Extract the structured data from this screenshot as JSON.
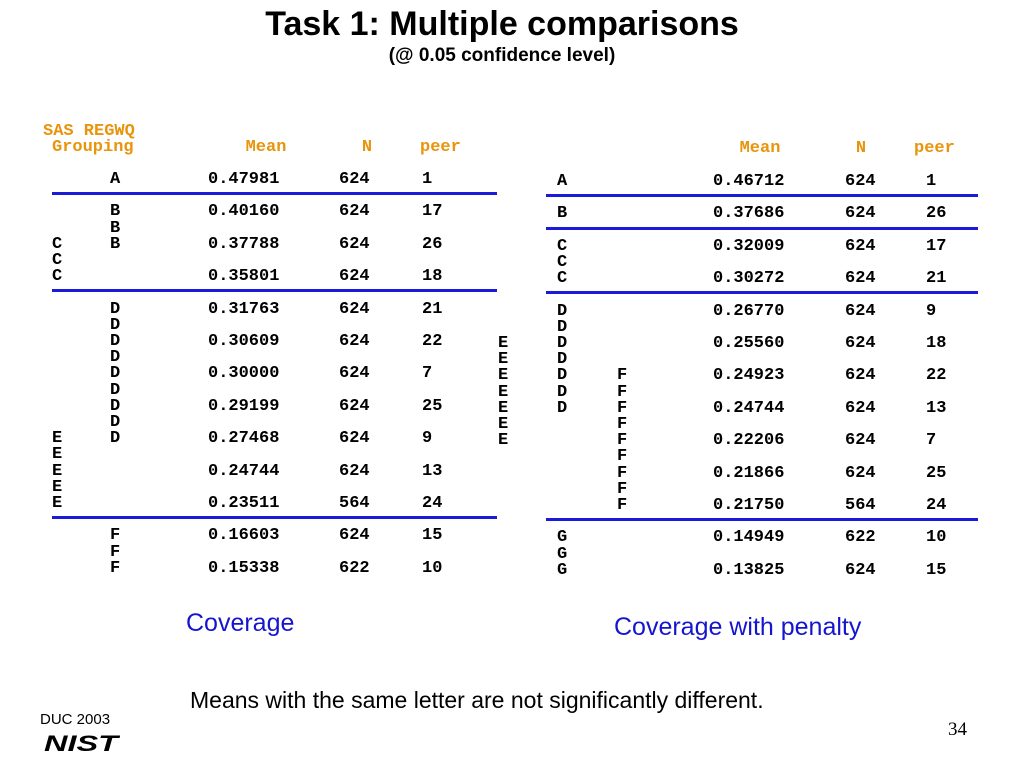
{
  "title": "Task 1: Multiple comparisons",
  "subtitle": "(@ 0.05 confidence level)",
  "left": {
    "group_header_1": "SAS REGWQ",
    "group_header_2": "Grouping",
    "mean_header": "Mean",
    "n_header": "N",
    "peer_header": "peer",
    "caption": "Coverage",
    "rows": [
      {
        "lines": [
          [
            "",
            "A",
            "0.47981",
            "624",
            "1"
          ]
        ]
      },
      {
        "lines": [
          [
            "",
            "B",
            "0.40160",
            "624",
            "17"
          ],
          [
            "",
            "B",
            "",
            "",
            ""
          ],
          [
            "C",
            "B",
            "0.37788",
            "624",
            "26"
          ],
          [
            "C",
            "",
            "",
            "",
            ""
          ],
          [
            "C",
            "",
            "0.35801",
            "624",
            "18"
          ]
        ]
      },
      {
        "lines": [
          [
            "",
            "D",
            "0.31763",
            "624",
            "21"
          ],
          [
            "",
            "D",
            "",
            "",
            ""
          ],
          [
            "",
            "D",
            "0.30609",
            "624",
            "22"
          ],
          [
            "",
            "D",
            "",
            "",
            ""
          ],
          [
            "",
            "D",
            "0.30000",
            "624",
            "7"
          ],
          [
            "",
            "D",
            "",
            "",
            ""
          ],
          [
            "",
            "D",
            "0.29199",
            "624",
            "25"
          ],
          [
            "",
            "D",
            "",
            "",
            ""
          ],
          [
            "E",
            "D",
            "0.27468",
            "624",
            "9"
          ],
          [
            "E",
            "",
            "",
            "",
            ""
          ],
          [
            "E",
            "",
            "0.24744",
            "624",
            "13"
          ],
          [
            "E",
            "",
            "",
            "",
            ""
          ],
          [
            "E",
            "",
            "0.23511",
            "564",
            "24"
          ]
        ]
      },
      {
        "lines": [
          [
            "",
            "F",
            "0.16603",
            "624",
            "15"
          ],
          [
            "",
            "F",
            "",
            "",
            ""
          ],
          [
            "",
            "F",
            "0.15338",
            "622",
            "10"
          ]
        ]
      }
    ]
  },
  "right": {
    "mean_header": "Mean",
    "n_header": "N",
    "peer_header": "peer",
    "caption": "Coverage with penalty",
    "rows": [
      {
        "lines": [
          [
            "",
            "A",
            "",
            "0.46712",
            "624",
            "1"
          ]
        ]
      },
      {
        "lines": [
          [
            "",
            "B",
            "",
            "0.37686",
            "624",
            "26"
          ]
        ]
      },
      {
        "lines": [
          [
            "",
            "C",
            "",
            "0.32009",
            "624",
            "17"
          ],
          [
            "",
            "C",
            "",
            "",
            "",
            ""
          ],
          [
            "",
            "C",
            "",
            "0.30272",
            "624",
            "21"
          ]
        ]
      },
      {
        "lines": [
          [
            "",
            "D",
            "",
            "0.26770",
            "624",
            "9"
          ],
          [
            "",
            "D",
            "",
            "",
            "",
            ""
          ],
          [
            "E",
            "D",
            "",
            "0.25560",
            "624",
            "18"
          ],
          [
            "E",
            "D",
            "",
            "",
            "",
            ""
          ],
          [
            "E",
            "D",
            "F",
            "0.24923",
            "624",
            "22"
          ],
          [
            "E",
            "D",
            "F",
            "",
            "",
            ""
          ],
          [
            "E",
            "D",
            "F",
            "0.24744",
            "624",
            "13"
          ],
          [
            "E",
            "",
            "F",
            "",
            "",
            ""
          ],
          [
            "E",
            "",
            "F",
            "0.22206",
            "624",
            "7"
          ],
          [
            "",
            "",
            "F",
            "",
            "",
            ""
          ],
          [
            "",
            "",
            "F",
            "0.21866",
            "624",
            "25"
          ],
          [
            "",
            "",
            "F",
            "",
            "",
            ""
          ],
          [
            "",
            "",
            "F",
            "0.21750",
            "564",
            "24"
          ]
        ]
      },
      {
        "lines": [
          [
            "",
            "G",
            "",
            "0.14949",
            "622",
            "10"
          ],
          [
            "",
            "G",
            "",
            "",
            "",
            ""
          ],
          [
            "",
            "G",
            "",
            "0.13825",
            "624",
            "15"
          ]
        ]
      }
    ]
  },
  "footnote": "Means with the same letter are not significantly different.",
  "conference": "DUC 2003",
  "logo_text": "NIST",
  "page_number": "34",
  "colors": {
    "header": "#e8940c",
    "rule": "#1a1ad8",
    "caption": "#1515d0"
  }
}
